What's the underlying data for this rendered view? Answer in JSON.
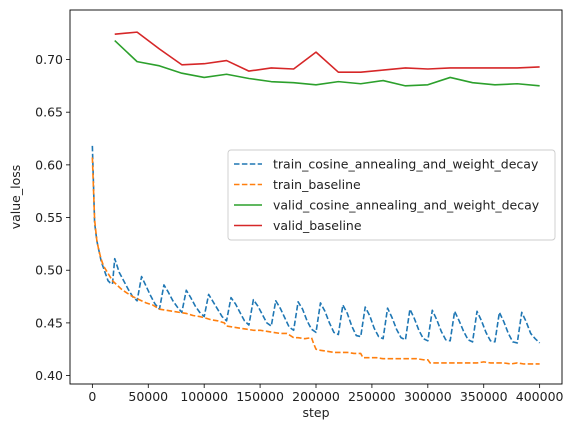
{
  "chart_data": {
    "type": "line",
    "xlabel": "step",
    "ylabel": "value_loss",
    "xlim": [
      -20000,
      420000
    ],
    "ylim": [
      0.392,
      0.747
    ],
    "xticks": [
      0,
      50000,
      100000,
      150000,
      200000,
      250000,
      300000,
      350000,
      400000
    ],
    "yticks": [
      0.4,
      0.45,
      0.5,
      0.55,
      0.6,
      0.65,
      0.7
    ],
    "xtick_labels": [
      "0",
      "50000",
      "100000",
      "150000",
      "200000",
      "250000",
      "300000",
      "350000",
      "400000"
    ],
    "ytick_labels": [
      "0.40",
      "0.45",
      "0.50",
      "0.55",
      "0.60",
      "0.65",
      "0.70"
    ],
    "grid": false,
    "legend_position": "center-right",
    "series": [
      {
        "name": "train_cosine_annealing_and_weight_decay",
        "color": "#1f77b4",
        "style": "dashed",
        "x": [
          0,
          2000,
          4000,
          6000,
          8000,
          10000,
          12000,
          14000,
          16000,
          18000,
          20000,
          24000,
          28000,
          32000,
          36000,
          40000,
          44000,
          48000,
          52000,
          56000,
          60000,
          64000,
          68000,
          72000,
          76000,
          80000,
          84000,
          88000,
          92000,
          96000,
          100000,
          104000,
          108000,
          112000,
          116000,
          120000,
          124000,
          128000,
          132000,
          136000,
          140000,
          144000,
          148000,
          152000,
          156000,
          160000,
          164000,
          168000,
          172000,
          176000,
          180000,
          184000,
          188000,
          192000,
          196000,
          200000,
          204000,
          208000,
          212000,
          216000,
          220000,
          224000,
          228000,
          232000,
          236000,
          240000,
          244000,
          248000,
          252000,
          256000,
          260000,
          264000,
          268000,
          272000,
          276000,
          280000,
          284000,
          288000,
          292000,
          296000,
          300000,
          304000,
          308000,
          312000,
          316000,
          320000,
          324000,
          328000,
          332000,
          336000,
          340000,
          344000,
          348000,
          352000,
          356000,
          360000,
          364000,
          368000,
          372000,
          376000,
          380000,
          384000,
          388000,
          392000,
          396000,
          400000
        ],
        "y": [
          0.618,
          0.545,
          0.528,
          0.518,
          0.508,
          0.502,
          0.496,
          0.49,
          0.488,
          0.487,
          0.511,
          0.498,
          0.49,
          0.482,
          0.475,
          0.471,
          0.494,
          0.485,
          0.476,
          0.468,
          0.463,
          0.486,
          0.479,
          0.471,
          0.465,
          0.46,
          0.481,
          0.474,
          0.466,
          0.46,
          0.456,
          0.477,
          0.47,
          0.463,
          0.456,
          0.452,
          0.474,
          0.468,
          0.46,
          0.452,
          0.448,
          0.472,
          0.466,
          0.458,
          0.45,
          0.447,
          0.471,
          0.464,
          0.455,
          0.446,
          0.443,
          0.47,
          0.463,
          0.452,
          0.444,
          0.441,
          0.469,
          0.461,
          0.45,
          0.441,
          0.439,
          0.467,
          0.459,
          0.447,
          0.438,
          0.437,
          0.465,
          0.457,
          0.445,
          0.437,
          0.435,
          0.464,
          0.455,
          0.444,
          0.436,
          0.434,
          0.463,
          0.454,
          0.443,
          0.435,
          0.433,
          0.462,
          0.453,
          0.442,
          0.434,
          0.433,
          0.461,
          0.452,
          0.442,
          0.434,
          0.432,
          0.461,
          0.452,
          0.441,
          0.433,
          0.432,
          0.46,
          0.451,
          0.44,
          0.432,
          0.431,
          0.46,
          0.451,
          0.44,
          0.435,
          0.431
        ]
      },
      {
        "name": "train_baseline",
        "color": "#ff7f0e",
        "style": "dashed",
        "x": [
          0,
          2000,
          4000,
          6000,
          8000,
          10000,
          14000,
          18000,
          22000,
          26000,
          30000,
          36000,
          42000,
          48000,
          54000,
          60000,
          66000,
          72000,
          78000,
          84000,
          90000,
          96000,
          100000,
          106000,
          112000,
          118000,
          120000,
          126000,
          132000,
          138000,
          144000,
          150000,
          156000,
          162000,
          168000,
          174000,
          180000,
          184000,
          190000,
          196000,
          198000,
          200000,
          204000,
          210000,
          216000,
          222000,
          228000,
          234000,
          240000,
          242000,
          248000,
          254000,
          260000,
          266000,
          272000,
          278000,
          284000,
          290000,
          296000,
          300000,
          302000,
          308000,
          314000,
          320000,
          326000,
          332000,
          338000,
          344000,
          350000,
          356000,
          362000,
          368000,
          374000,
          380000,
          386000,
          392000,
          398000,
          400000
        ],
        "y": [
          0.607,
          0.548,
          0.528,
          0.518,
          0.51,
          0.504,
          0.497,
          0.49,
          0.486,
          0.482,
          0.479,
          0.475,
          0.472,
          0.469,
          0.467,
          0.463,
          0.462,
          0.461,
          0.46,
          0.459,
          0.457,
          0.456,
          0.455,
          0.453,
          0.452,
          0.45,
          0.447,
          0.446,
          0.445,
          0.444,
          0.443,
          0.443,
          0.442,
          0.441,
          0.44,
          0.44,
          0.436,
          0.436,
          0.435,
          0.436,
          0.43,
          0.425,
          0.424,
          0.423,
          0.422,
          0.422,
          0.422,
          0.421,
          0.421,
          0.417,
          0.417,
          0.417,
          0.416,
          0.416,
          0.416,
          0.416,
          0.416,
          0.416,
          0.415,
          0.415,
          0.412,
          0.412,
          0.412,
          0.412,
          0.412,
          0.412,
          0.412,
          0.412,
          0.413,
          0.412,
          0.412,
          0.412,
          0.411,
          0.412,
          0.411,
          0.411,
          0.411,
          0.411
        ]
      },
      {
        "name": "valid_cosine_annealing_and_weight_decay",
        "color": "#2ca02c",
        "style": "solid",
        "x": [
          20000,
          40000,
          60000,
          80000,
          100000,
          120000,
          140000,
          160000,
          180000,
          200000,
          220000,
          240000,
          260000,
          280000,
          300000,
          320000,
          340000,
          360000,
          380000,
          400000
        ],
        "y": [
          0.718,
          0.698,
          0.694,
          0.687,
          0.683,
          0.686,
          0.682,
          0.679,
          0.678,
          0.676,
          0.679,
          0.677,
          0.68,
          0.675,
          0.676,
          0.683,
          0.678,
          0.676,
          0.677,
          0.675
        ]
      },
      {
        "name": "valid_baseline",
        "color": "#d62728",
        "style": "solid",
        "x": [
          20000,
          40000,
          60000,
          80000,
          100000,
          120000,
          140000,
          160000,
          180000,
          200000,
          220000,
          240000,
          260000,
          280000,
          300000,
          320000,
          340000,
          360000,
          380000,
          400000
        ],
        "y": [
          0.724,
          0.726,
          0.71,
          0.695,
          0.696,
          0.699,
          0.689,
          0.692,
          0.691,
          0.707,
          0.688,
          0.688,
          0.69,
          0.692,
          0.691,
          0.692,
          0.692,
          0.692,
          0.692,
          0.693
        ]
      }
    ]
  }
}
